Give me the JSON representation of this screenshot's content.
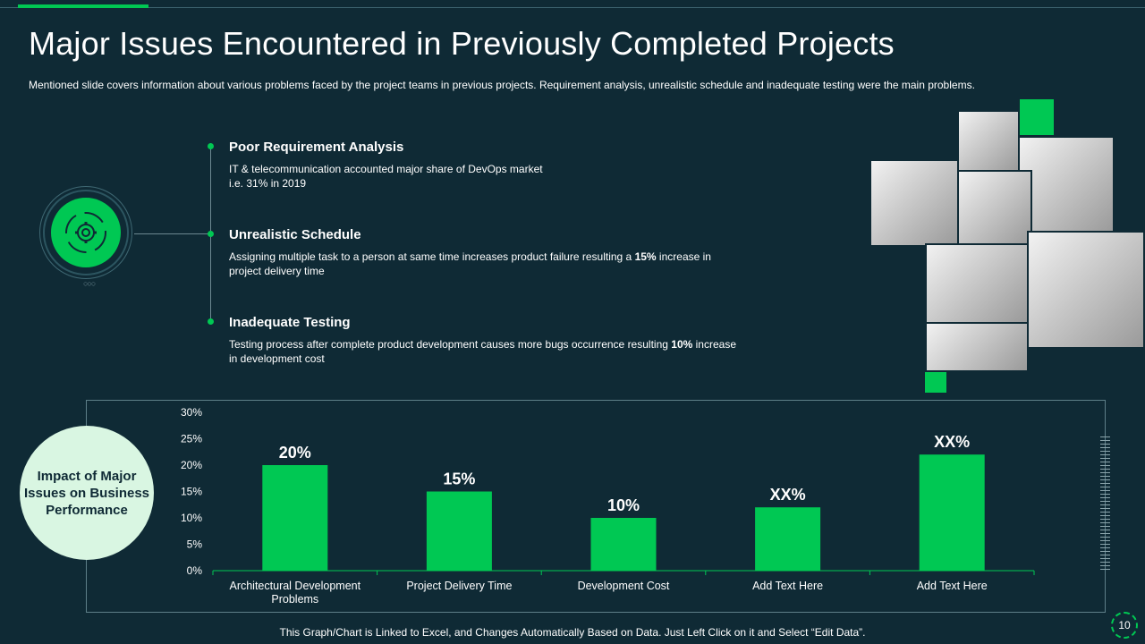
{
  "header": {
    "title": "Major Issues Encountered in Previously Completed Projects",
    "subtitle": "Mentioned slide covers information  about various  problems faced by the project teams in previous  projects. Requirement  analysis, unrealistic schedule and inadequate  testing were  the main problems."
  },
  "issues": [
    {
      "title": "Poor Requirement Analysis",
      "line1": "IT & telecommunication accounted major share of DevOps  market",
      "line2": "i.e. 31% in 2019"
    },
    {
      "title": "Unrealistic Schedule",
      "line1": "Assigning multiple task to a person at same time increases product failure resulting a ",
      "line1_bold": "15%",
      "line1_tail": " increase in",
      "line2": "project delivery  time"
    },
    {
      "title": "Inadequate Testing",
      "line1": "Testing process after complete product development  causes more bugs occurrence resulting ",
      "line1_bold": "10%",
      "line1_tail": "  increase",
      "line2": "in development  cost"
    }
  ],
  "icons": {
    "main": "gear-cycle-icon"
  },
  "impact_label": "Impact of Major Issues on Business Performance",
  "chart_data": {
    "type": "bar",
    "categories": [
      "Architectural Development Problems",
      "Project Delivery Time",
      "Development Cost",
      "Add Text Here",
      "Add Text Here"
    ],
    "values": [
      20,
      15,
      10,
      12,
      22
    ],
    "data_labels": [
      "20%",
      "15%",
      "10%",
      "XX%",
      "XX%"
    ],
    "ylim": [
      0,
      30
    ],
    "yticks": [
      "0%",
      "5%",
      "10%",
      "15%",
      "20%",
      "25%",
      "30%"
    ],
    "bar_color": "#00c853",
    "grid": false
  },
  "colors": {
    "background": "#0f2a35",
    "accent": "#00c853"
  },
  "footer": "This Graph/Chart is Linked to Excel, and Changes Automatically Based on Data. Just Left Click on it and Select “Edit Data”.",
  "page_number": "10"
}
